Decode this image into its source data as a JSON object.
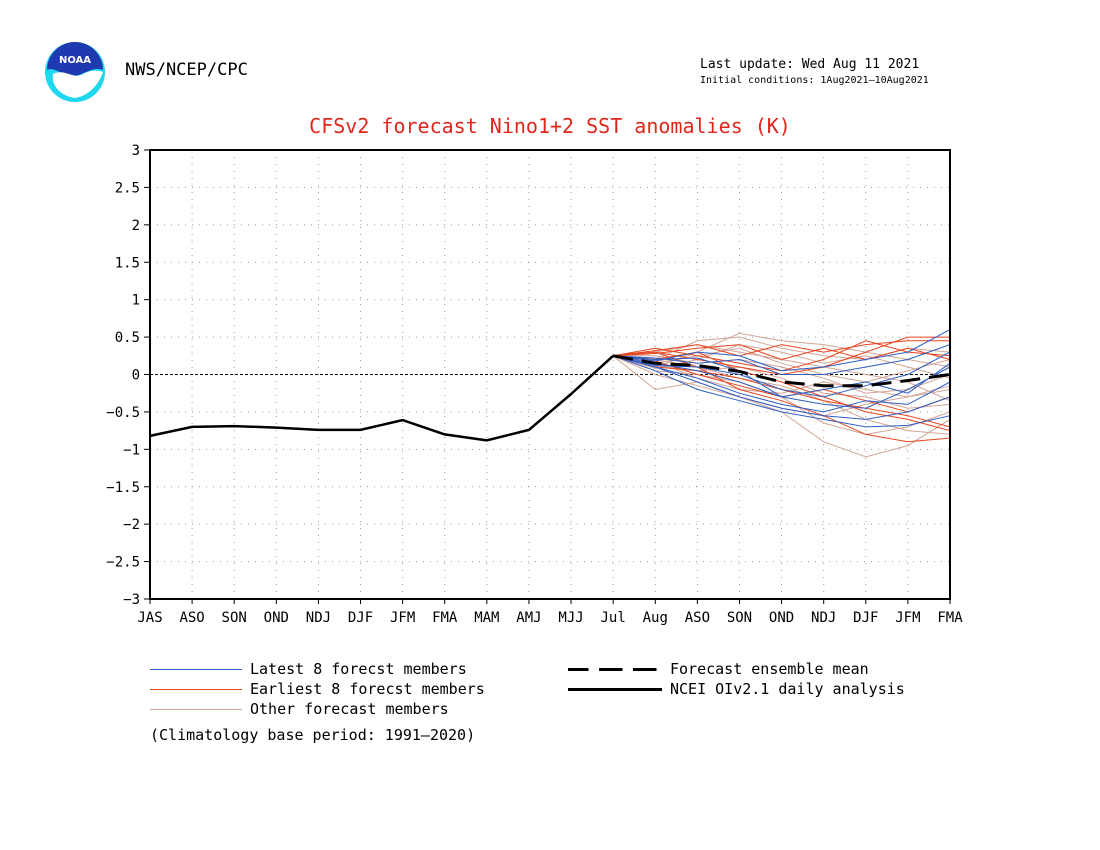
{
  "header": {
    "agency": "NWS/NCEP/CPC",
    "last_update": "Last update: Wed Aug 11 2021",
    "initial_conditions": "Initial conditions: 1Aug2021—10Aug2021",
    "logo_text": "NOAA"
  },
  "footer": {
    "climatology_note": "(Climatology base period: 1991—2020)"
  },
  "chart_data": {
    "type": "line",
    "title": "CFSv2 forecast Nino1+2 SST anomalies (K)",
    "xlabel": "",
    "ylabel": "",
    "categories": [
      "JAS",
      "ASO",
      "SON",
      "OND",
      "NDJ",
      "DJF",
      "JFM",
      "FMA",
      "MAM",
      "AMJ",
      "MJJ",
      "Jul",
      "Aug",
      "ASO",
      "SON",
      "OND",
      "NDJ",
      "DJF",
      "JFM",
      "FMA"
    ],
    "ylim": [
      -3,
      3
    ],
    "yticks": [
      "3",
      "2.5",
      "2",
      "1.5",
      "1",
      "0.5",
      "0",
      "−0.5",
      "−1",
      "−1.5",
      "−2",
      "−2.5",
      "−3"
    ],
    "ytick_values": [
      3,
      2.5,
      2,
      1.5,
      1,
      0.5,
      0,
      -0.5,
      -1,
      -1.5,
      -2,
      -2.5,
      -3
    ],
    "grid": true,
    "legend_position": "bottom",
    "colors": {
      "title": "#e0261b",
      "latest": "#2e5fc7",
      "earliest": "#e8451e",
      "other": "#d2a595",
      "mean": "#000000",
      "analysis": "#000000"
    },
    "series": [
      {
        "name": "NCEI OIv2.1 daily analysis",
        "style": "solid-thick",
        "x": [
          0,
          1,
          2,
          3,
          4,
          5,
          6,
          7,
          8,
          9,
          10,
          11
        ],
        "values": [
          -0.82,
          -0.7,
          -0.69,
          -0.71,
          -0.74,
          -0.74,
          -0.61,
          -0.8,
          -0.88,
          -0.74,
          -0.26,
          0.25
        ]
      },
      {
        "name": "Forecast ensemble mean",
        "style": "dashed-thick",
        "x": [
          11,
          12,
          13,
          14,
          15,
          16,
          17,
          18,
          19
        ],
        "values": [
          0.25,
          0.15,
          0.12,
          0.04,
          -0.1,
          -0.15,
          -0.15,
          -0.08,
          0.0
        ]
      },
      {
        "name": "Latest 8 forecst members",
        "style": "thin",
        "x": [
          11,
          12,
          13,
          14,
          15,
          16,
          17,
          18,
          19
        ],
        "members": [
          [
            0.25,
            0.2,
            0.22,
            0.05,
            -0.3,
            -0.4,
            -0.45,
            -0.2,
            0.1
          ],
          [
            0.25,
            0.1,
            -0.1,
            -0.3,
            -0.45,
            -0.55,
            -0.6,
            -0.5,
            -0.3
          ],
          [
            0.25,
            0.18,
            0.3,
            0.25,
            0.05,
            0.1,
            0.2,
            0.3,
            0.6
          ],
          [
            0.25,
            0.05,
            -0.2,
            -0.35,
            -0.5,
            -0.6,
            -0.7,
            -0.68,
            -0.55
          ],
          [
            0.25,
            0.12,
            0.1,
            0.0,
            -0.2,
            -0.3,
            -0.15,
            0.0,
            0.3
          ],
          [
            0.25,
            0.22,
            0.15,
            0.2,
            0.0,
            0.0,
            0.1,
            0.2,
            0.4
          ],
          [
            0.25,
            0.1,
            -0.05,
            -0.25,
            -0.4,
            -0.5,
            -0.35,
            -0.4,
            -0.1
          ],
          [
            0.25,
            0.15,
            0.05,
            -0.1,
            -0.3,
            -0.2,
            -0.1,
            -0.25,
            0.15
          ]
        ]
      },
      {
        "name": "Earliest 8 forecst members",
        "style": "thin",
        "x": [
          11,
          12,
          13,
          14,
          15,
          16,
          17,
          18,
          19
        ],
        "members": [
          [
            0.25,
            0.32,
            0.4,
            0.25,
            0.4,
            0.3,
            0.4,
            0.45,
            0.45
          ],
          [
            0.25,
            0.2,
            0.3,
            0.05,
            -0.1,
            -0.3,
            -0.5,
            -0.6,
            -0.75
          ],
          [
            0.25,
            0.3,
            0.1,
            -0.2,
            -0.35,
            -0.55,
            -0.8,
            -0.9,
            -0.85
          ],
          [
            0.25,
            0.28,
            0.35,
            0.4,
            0.2,
            0.35,
            0.2,
            0.35,
            0.2
          ],
          [
            0.25,
            0.18,
            0.0,
            -0.15,
            -0.3,
            -0.2,
            -0.35,
            -0.5,
            -0.3
          ],
          [
            0.25,
            0.3,
            0.2,
            0.1,
            0.0,
            0.1,
            0.3,
            0.5,
            0.5
          ],
          [
            0.25,
            0.1,
            0.05,
            -0.05,
            -0.2,
            -0.35,
            -0.45,
            -0.55,
            -0.7
          ],
          [
            0.25,
            0.35,
            0.25,
            0.15,
            0.05,
            0.2,
            0.45,
            0.3,
            0.25
          ]
        ]
      },
      {
        "name": "Other forecast members",
        "style": "thin",
        "x": [
          11,
          12,
          13,
          14,
          15,
          16,
          17,
          18,
          19
        ],
        "members": [
          [
            0.25,
            0.1,
            0.3,
            0.55,
            0.45,
            0.4,
            0.3,
            0.2,
            0.1
          ],
          [
            0.25,
            -0.2,
            -0.1,
            -0.3,
            -0.5,
            -0.9,
            -1.1,
            -0.95,
            -0.6
          ],
          [
            0.25,
            0.2,
            0.45,
            0.5,
            0.35,
            0.25,
            0.2,
            0.35,
            0.3
          ],
          [
            0.25,
            0.05,
            0.0,
            -0.1,
            -0.3,
            -0.65,
            -0.8,
            -0.7,
            -0.5
          ],
          [
            0.25,
            0.15,
            0.25,
            0.35,
            0.15,
            0.0,
            -0.1,
            0.05,
            0.2
          ],
          [
            0.25,
            0.0,
            -0.15,
            -0.3,
            -0.45,
            -0.55,
            -0.4,
            -0.3,
            -0.2
          ],
          [
            0.25,
            0.3,
            0.4,
            0.3,
            0.2,
            0.1,
            0.0,
            -0.1,
            -0.35
          ],
          [
            0.25,
            0.12,
            0.05,
            0.1,
            -0.05,
            -0.25,
            -0.3,
            -0.45,
            -0.4
          ],
          [
            0.25,
            0.2,
            0.1,
            -0.05,
            -0.15,
            -0.35,
            -0.6,
            -0.75,
            -0.8
          ],
          [
            0.25,
            0.08,
            0.2,
            0.4,
            0.3,
            0.15,
            0.25,
            0.1,
            -0.05
          ],
          [
            0.25,
            0.18,
            -0.05,
            -0.2,
            -0.25,
            -0.1,
            -0.2,
            -0.3,
            -0.15
          ],
          [
            0.25,
            0.25,
            0.15,
            0.2,
            0.1,
            -0.05,
            -0.25,
            -0.2,
            0.0
          ]
        ]
      }
    ]
  }
}
